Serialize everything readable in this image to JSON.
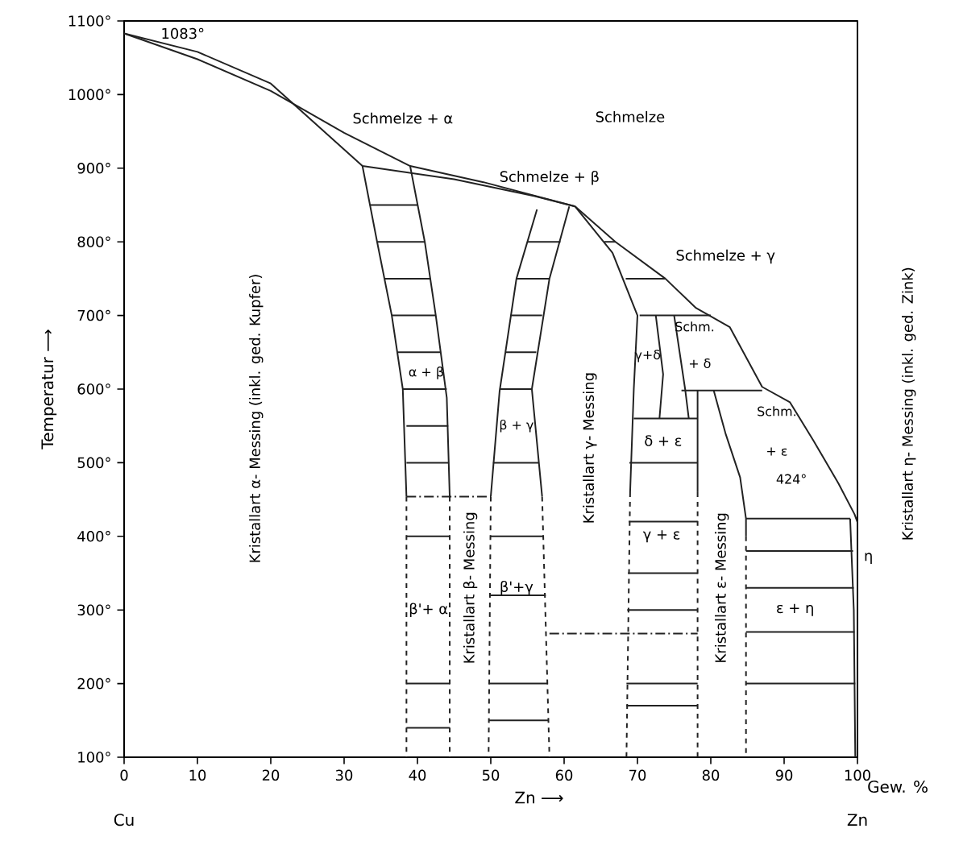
{
  "chart_data": {
    "type": "line",
    "xlabel": "Zn ⟶",
    "ylabel": "Temperatur ⟶",
    "xlim": [
      0,
      100
    ],
    "ylim": [
      100,
      1100
    ],
    "xticks": [
      0,
      10,
      20,
      30,
      40,
      50,
      60,
      70,
      80,
      90,
      100
    ],
    "yticks": [
      {
        "value": 100,
        "label": "100°"
      },
      {
        "value": 200,
        "label": "200°"
      },
      {
        "value": 300,
        "label": "300°"
      },
      {
        "value": 400,
        "label": "400°"
      },
      {
        "value": 500,
        "label": "500°"
      },
      {
        "value": 600,
        "label": "600°"
      },
      {
        "value": 700,
        "label": "700°"
      },
      {
        "value": 800,
        "label": "800°"
      },
      {
        "value": 900,
        "label": "900°"
      },
      {
        "value": 1000,
        "label": "1000°"
      },
      {
        "value": 1100,
        "label": "1100°"
      }
    ],
    "grid": false,
    "marker": "none",
    "series": [
      {
        "color": "#222222",
        "line_style": "solid",
        "x": [
          0,
          10,
          20,
          30,
          39,
          49,
          61.5,
          67,
          73.8,
          78,
          82.6,
          87,
          90.8,
          94,
          97.4,
          99.6,
          100
        ],
        "values": [
          1083,
          1048,
          1005,
          948,
          903,
          881,
          848,
          800,
          750,
          710,
          684,
          603,
          582,
          530,
          472,
          430,
          419
        ]
      },
      {
        "color": "#222222",
        "line_style": "solid",
        "x": [
          0,
          10,
          20,
          32.5,
          45,
          56,
          61.5
        ],
        "values": [
          1083,
          1058,
          1015,
          903,
          885,
          862,
          848
        ]
      },
      {
        "color": "#222222",
        "line_style": "solid",
        "x": [
          32.5,
          34.5,
          36.5,
          38,
          38.5
        ],
        "values": [
          903,
          800,
          700,
          600,
          454
        ]
      },
      {
        "color": "#222222",
        "line_style": "dashed",
        "x": [
          38.5,
          38.5
        ],
        "values": [
          454,
          100
        ]
      },
      {
        "color": "#222222",
        "line_style": "solid",
        "x": [
          39,
          41,
          42.5,
          44,
          44.4
        ],
        "values": [
          903,
          800,
          700,
          588,
          454
        ]
      },
      {
        "color": "#222222",
        "line_style": "dashed",
        "x": [
          44.4,
          44.4
        ],
        "values": [
          454,
          100
        ]
      },
      {
        "color": "#222222",
        "line_style": "solid",
        "x": [
          56.3,
          53.5,
          51.2,
          50
        ],
        "values": [
          844,
          750,
          597,
          454
        ]
      },
      {
        "color": "#222222",
        "line_style": "dashed",
        "x": [
          50,
          49.7
        ],
        "values": [
          454,
          100
        ]
      },
      {
        "color": "#222222",
        "line_style": "solid",
        "x": [
          60.7,
          58,
          55.6,
          57
        ],
        "values": [
          848,
          750,
          600,
          454
        ]
      },
      {
        "color": "#222222",
        "line_style": "dashed",
        "x": [
          57,
          58
        ],
        "values": [
          454,
          100
        ]
      },
      {
        "color": "#222222",
        "line_style": "solid",
        "x": [
          61.5,
          66.6,
          70,
          69.5,
          69
        ],
        "values": [
          848,
          785,
          700,
          600,
          460
        ]
      },
      {
        "color": "#222222",
        "line_style": "dashed",
        "x": [
          69,
          68.5
        ],
        "values": [
          460,
          100
        ]
      },
      {
        "color": "#222222",
        "line_style": "solid",
        "x": [
          78.2,
          78.2
        ],
        "values": [
          598,
          460
        ]
      },
      {
        "color": "#222222",
        "line_style": "dashed",
        "x": [
          78.2,
          78.2
        ],
        "values": [
          460,
          100
        ]
      },
      {
        "color": "#222222",
        "line_style": "solid",
        "x": [
          80.4,
          82,
          84,
          84.8,
          84.8
        ],
        "values": [
          598,
          540,
          480,
          424,
          400
        ]
      },
      {
        "color": "#222222",
        "line_style": "dashed",
        "x": [
          84.8,
          84.8
        ],
        "values": [
          400,
          100
        ]
      },
      {
        "color": "#222222",
        "line_style": "solid",
        "x": [
          84.8,
          99
        ],
        "values": [
          424,
          424
        ]
      },
      {
        "color": "#222222",
        "line_style": "solid",
        "x": [
          99,
          99.5,
          99.7
        ],
        "values": [
          424,
          300,
          100
        ]
      },
      {
        "color": "#222222",
        "line_style": "solid",
        "x": [
          70.3,
          80
        ],
        "values": [
          700,
          700
        ]
      },
      {
        "color": "#222222",
        "line_style": "solid",
        "x": [
          72.5,
          73.5,
          73
        ],
        "values": [
          700,
          620,
          560
        ]
      },
      {
        "color": "#222222",
        "line_style": "solid",
        "x": [
          75,
          76.5,
          77
        ],
        "values": [
          700,
          600,
          560
        ]
      },
      {
        "color": "#222222",
        "line_style": "solid",
        "x": [
          69.5,
          78.2
        ],
        "values": [
          560,
          560
        ]
      },
      {
        "color": "#222222",
        "line_style": "solid",
        "x": [
          76,
          87
        ],
        "values": [
          598,
          598
        ]
      },
      {
        "color": "#222222",
        "line_style": "dotted",
        "x": [
          38.5,
          44.4,
          50
        ],
        "values": [
          454,
          454,
          454
        ]
      },
      {
        "color": "#222222",
        "line_style": "dotted",
        "x": [
          58,
          68.5,
          78.2
        ],
        "values": [
          268,
          268,
          268
        ]
      },
      {
        "color": "#222222",
        "line_style": "solid",
        "x": [
          33.6,
          40
        ],
        "values": [
          850,
          850
        ]
      },
      {
        "color": "#222222",
        "line_style": "solid",
        "x": [
          34.5,
          41
        ],
        "values": [
          800,
          800
        ]
      },
      {
        "color": "#222222",
        "line_style": "solid",
        "x": [
          35.5,
          41.8
        ],
        "values": [
          750,
          750
        ]
      },
      {
        "color": "#222222",
        "line_style": "solid",
        "x": [
          36.5,
          42.5
        ],
        "values": [
          700,
          700
        ]
      },
      {
        "color": "#222222",
        "line_style": "solid",
        "x": [
          37.3,
          43.2
        ],
        "values": [
          650,
          650
        ]
      },
      {
        "color": "#222222",
        "line_style": "solid",
        "x": [
          38,
          44
        ],
        "values": [
          600,
          600
        ]
      },
      {
        "color": "#222222",
        "line_style": "solid",
        "x": [
          38.5,
          44.2
        ],
        "values": [
          550,
          550
        ]
      },
      {
        "color": "#222222",
        "line_style": "solid",
        "x": [
          38.5,
          44.3
        ],
        "values": [
          500,
          500
        ]
      },
      {
        "color": "#222222",
        "line_style": "solid",
        "x": [
          38.5,
          44.4
        ],
        "values": [
          400,
          400
        ]
      },
      {
        "color": "#222222",
        "line_style": "solid",
        "x": [
          38.5,
          44.4
        ],
        "values": [
          200,
          200
        ]
      },
      {
        "color": "#222222",
        "line_style": "solid",
        "x": [
          38.5,
          44.4
        ],
        "values": [
          140,
          140
        ]
      },
      {
        "color": "#222222",
        "line_style": "solid",
        "x": [
          55,
          59.5
        ],
        "values": [
          800,
          800
        ]
      },
      {
        "color": "#222222",
        "line_style": "solid",
        "x": [
          53.5,
          58
        ],
        "values": [
          750,
          750
        ]
      },
      {
        "color": "#222222",
        "line_style": "solid",
        "x": [
          52.7,
          57
        ],
        "values": [
          700,
          700
        ]
      },
      {
        "color": "#222222",
        "line_style": "solid",
        "x": [
          52,
          56.2
        ],
        "values": [
          650,
          650
        ]
      },
      {
        "color": "#222222",
        "line_style": "solid",
        "x": [
          51.2,
          55.6
        ],
        "values": [
          600,
          600
        ]
      },
      {
        "color": "#222222",
        "line_style": "solid",
        "x": [
          50.3,
          56.5
        ],
        "values": [
          500,
          500
        ]
      },
      {
        "color": "#222222",
        "line_style": "solid",
        "x": [
          49.9,
          57.2
        ],
        "values": [
          400,
          400
        ]
      },
      {
        "color": "#222222",
        "line_style": "solid",
        "x": [
          49.8,
          57.5
        ],
        "values": [
          320,
          320
        ]
      },
      {
        "color": "#222222",
        "line_style": "solid",
        "x": [
          49.7,
          57.8
        ],
        "values": [
          200,
          200
        ]
      },
      {
        "color": "#222222",
        "line_style": "solid",
        "x": [
          49.7,
          57.8
        ],
        "values": [
          150,
          150
        ]
      },
      {
        "color": "#222222",
        "line_style": "solid",
        "x": [
          65.5,
          67
        ],
        "values": [
          800,
          800
        ]
      },
      {
        "color": "#222222",
        "line_style": "solid",
        "x": [
          68.4,
          73.8
        ],
        "values": [
          750,
          750
        ]
      },
      {
        "color": "#222222",
        "line_style": "solid",
        "x": [
          68.9,
          78.2
        ],
        "values": [
          500,
          500
        ]
      },
      {
        "color": "#222222",
        "line_style": "solid",
        "x": [
          68.8,
          78.2
        ],
        "values": [
          420,
          420
        ]
      },
      {
        "color": "#222222",
        "line_style": "solid",
        "x": [
          68.7,
          78.2
        ],
        "values": [
          350,
          350
        ]
      },
      {
        "color": "#222222",
        "line_style": "solid",
        "x": [
          68.6,
          78.2
        ],
        "values": [
          300,
          300
        ]
      },
      {
        "color": "#222222",
        "line_style": "solid",
        "x": [
          68.5,
          78.2
        ],
        "values": [
          200,
          200
        ]
      },
      {
        "color": "#222222",
        "line_style": "solid",
        "x": [
          68.5,
          78.2
        ],
        "values": [
          170,
          170
        ]
      },
      {
        "color": "#222222",
        "line_style": "solid",
        "x": [
          84.8,
          99.4
        ],
        "values": [
          380,
          380
        ]
      },
      {
        "color": "#222222",
        "line_style": "solid",
        "x": [
          84.8,
          99.5
        ],
        "values": [
          330,
          330
        ]
      },
      {
        "color": "#222222",
        "line_style": "solid",
        "x": [
          84.8,
          99.6
        ],
        "values": [
          270,
          270
        ]
      },
      {
        "color": "#222222",
        "line_style": "solid",
        "x": [
          84.8,
          99.7
        ],
        "values": [
          200,
          200
        ]
      }
    ],
    "annotations": [
      "1083°",
      "Schmelze + α",
      "Schmelze",
      "Schmelze + β",
      "Schmelze + γ",
      "Schm.",
      "+ δ",
      "γ+δ",
      "δ + ε",
      "Schm.",
      "+ ε",
      "424°",
      "α + β",
      "β'+ α",
      "β + γ",
      "β'+γ",
      "γ + ε",
      "ε + η",
      "η",
      "Kristallart α- Messing (inkl. ged. Kupfer)",
      "Kristallart β- Messing",
      "Kristallart γ- Messing",
      "Kristallart ε- Messing",
      "Kristallart η- Messing (inkl. ged. Zink)",
      "Cu",
      "Zn",
      "Gew. %"
    ]
  }
}
